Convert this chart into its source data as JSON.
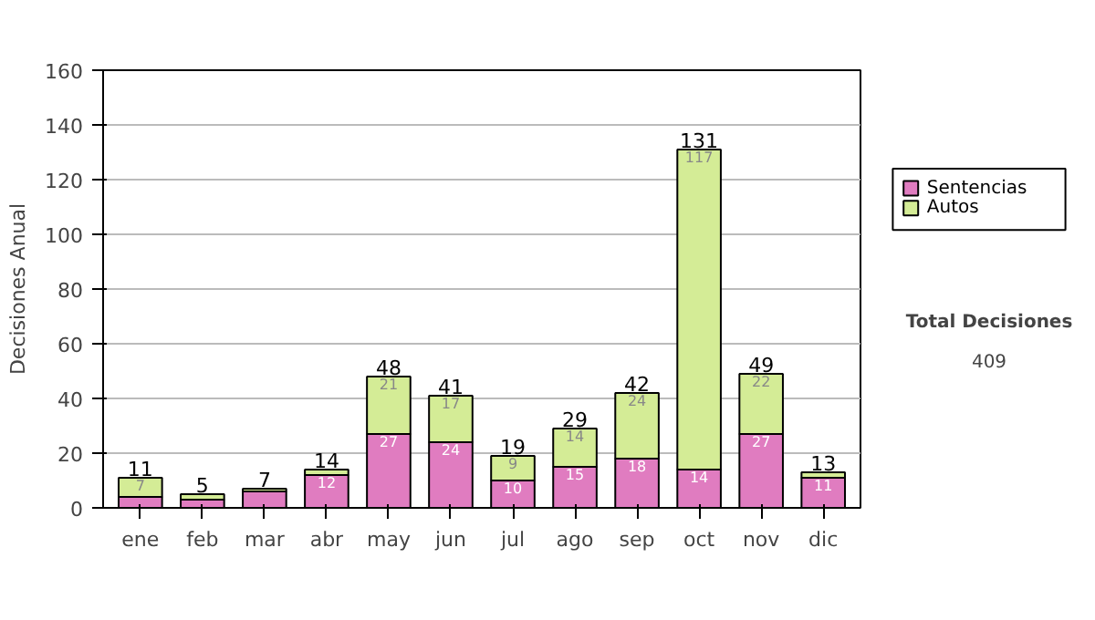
{
  "chart_data": {
    "type": "bar",
    "stacked": true,
    "ylabel": "Decisiones Anual",
    "categories": [
      "ene",
      "feb",
      "mar",
      "abr",
      "may",
      "jun",
      "jul",
      "ago",
      "sep",
      "oct",
      "nov",
      "dic"
    ],
    "series": [
      {
        "name": "Sentencias",
        "color": "#e07cc0",
        "values": [
          4,
          3,
          6,
          12,
          27,
          24,
          10,
          15,
          18,
          14,
          27,
          11
        ],
        "value_labels": [
          null,
          null,
          null,
          "12",
          "27",
          "24",
          "10",
          "15",
          "18",
          "14",
          "27",
          "11"
        ]
      },
      {
        "name": "Autos",
        "color": "#d4ec96",
        "values": [
          7,
          2,
          1,
          2,
          21,
          17,
          9,
          14,
          24,
          117,
          22,
          2
        ],
        "value_labels": [
          "7",
          null,
          null,
          null,
          "21",
          "17",
          "9",
          "14",
          "24",
          "117",
          "22",
          null
        ]
      }
    ],
    "totals": [
      "11",
      "5",
      "7",
      "14",
      "48",
      "41",
      "19",
      "29",
      "42",
      "131",
      "49",
      "13"
    ],
    "ylim": [
      0,
      160
    ],
    "yticks": [
      0,
      20,
      40,
      60,
      80,
      100,
      120,
      140,
      160
    ],
    "grid": "y",
    "legend": "right",
    "annotations": [
      "Total Decisiones",
      "409"
    ]
  }
}
